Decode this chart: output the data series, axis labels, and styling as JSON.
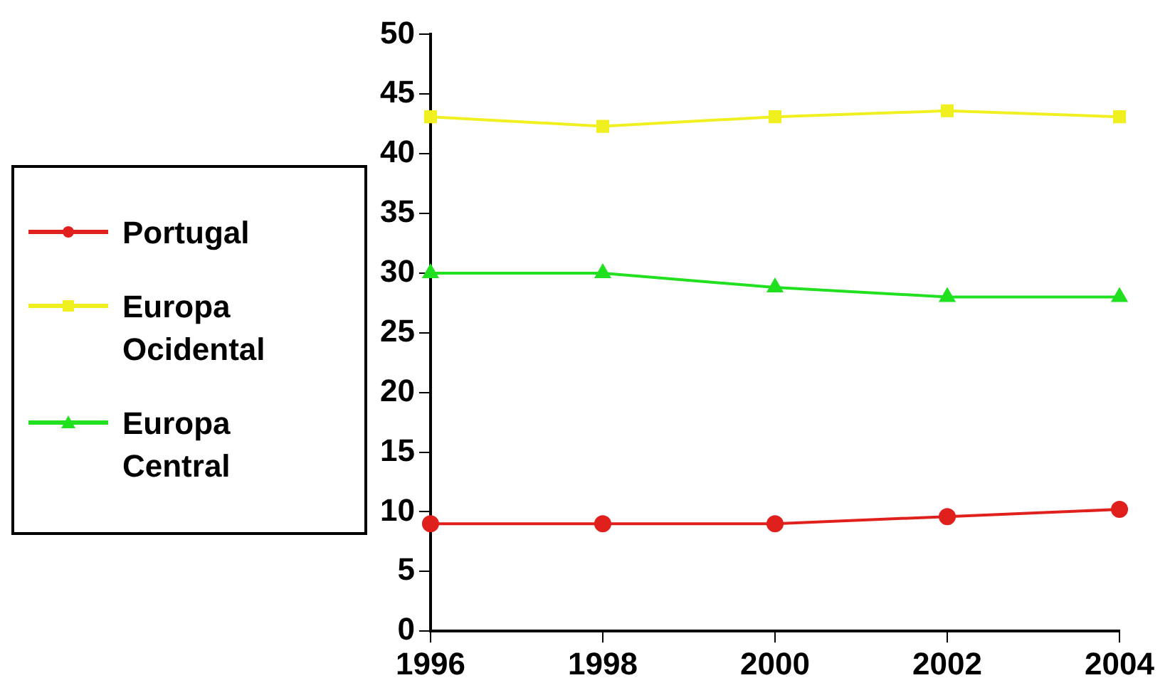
{
  "chart_data": {
    "type": "line",
    "categories": [
      "1996",
      "1998",
      "2000",
      "2002",
      "2004"
    ],
    "series": [
      {
        "name": "Portugal",
        "color": "#e0201c",
        "marker": "circle",
        "values": [
          9,
          9,
          9,
          9.6,
          10.2
        ]
      },
      {
        "name": "Europa Ocidental",
        "color": "#f0f020",
        "marker": "square",
        "values": [
          43.1,
          42.3,
          43.1,
          43.6,
          43.1
        ]
      },
      {
        "name": "Europa Central",
        "color": "#20e020",
        "marker": "triangle",
        "values": [
          30,
          30,
          28.8,
          28,
          28
        ]
      }
    ],
    "ylim": [
      0,
      50
    ],
    "yticks": [
      0,
      5,
      10,
      15,
      20,
      25,
      30,
      35,
      40,
      45,
      50
    ],
    "grid": false,
    "legend": "left"
  }
}
